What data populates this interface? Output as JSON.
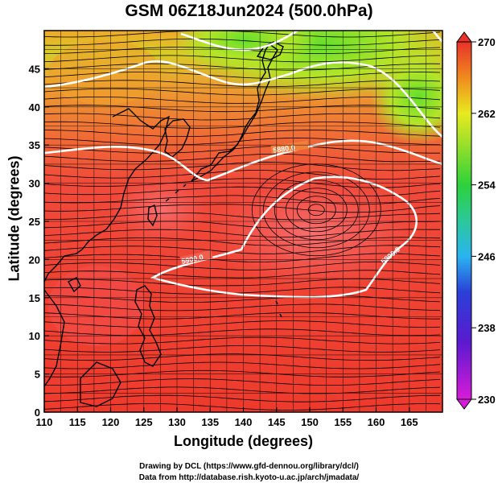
{
  "title": "GSM 06Z18Jun2024 (500.0hPa)",
  "xaxis": {
    "label": "Longitude (degrees)",
    "ticks": [
      "110",
      "115",
      "120",
      "125",
      "130",
      "135",
      "140",
      "145",
      "150",
      "155",
      "160",
      "165"
    ],
    "range": [
      110,
      170
    ]
  },
  "yaxis": {
    "label": "Latitude  (degrees)",
    "ticks": [
      "0",
      "5",
      "10",
      "15",
      "20",
      "25",
      "30",
      "35",
      "40",
      "45"
    ],
    "range": [
      0,
      50
    ]
  },
  "colorbar": {
    "ticks": [
      "230",
      "238",
      "246",
      "254",
      "262",
      "270"
    ],
    "range": [
      230,
      270
    ],
    "colors": [
      "#d81bd8",
      "#3a2ad0",
      "#2ab4f0",
      "#2cd23a",
      "#e8ea1e",
      "#f08a1e",
      "#e8322a"
    ]
  },
  "contours": [
    {
      "label": "5880.0",
      "color": "#ffffff"
    },
    {
      "label": "5900.0",
      "color": "#ffffff"
    }
  ],
  "credits": [
    "Drawing by DCL (https://www.gfd-dennou.org/library/dcl/)",
    "Data from http://database.rish.kyoto-u.ac.jp/arch/jmadata/"
  ]
}
